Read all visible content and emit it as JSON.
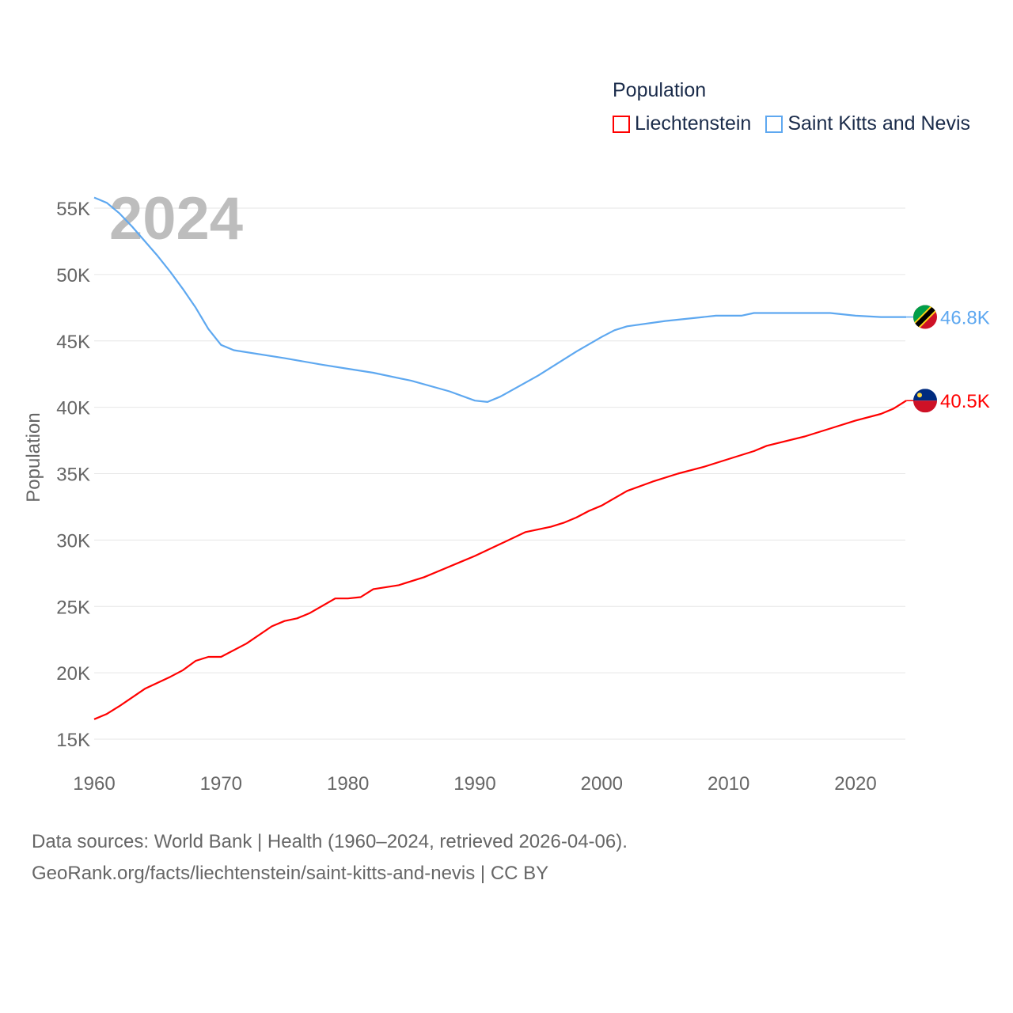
{
  "chart_data": {
    "type": "line",
    "title": "",
    "watermark_year": "2024",
    "ylabel": "Population",
    "xlabel": "",
    "xlim": [
      1960,
      2024
    ],
    "ylim": [
      15000,
      56000
    ],
    "xticks": [
      "1960",
      "1970",
      "1980",
      "1990",
      "2000",
      "2010",
      "2020"
    ],
    "yticks": [
      "15K",
      "20K",
      "25K",
      "30K",
      "35K",
      "40K",
      "45K",
      "50K",
      "55K"
    ],
    "grid": true,
    "legend": {
      "title": "Population",
      "position": "top-right"
    },
    "series": [
      {
        "name": "Liechtenstein",
        "color": "#ff0000",
        "end_label": "40.5K",
        "x": [
          1960,
          1961,
          1962,
          1964,
          1966,
          1967,
          1968,
          1969,
          1970,
          1972,
          1974,
          1975,
          1976,
          1977,
          1979,
          1980,
          1981,
          1982,
          1984,
          1986,
          1987,
          1989,
          1990,
          1992,
          1994,
          1996,
          1997,
          1998,
          1999,
          2000,
          2002,
          2004,
          2006,
          2008,
          2010,
          2012,
          2013,
          2016,
          2018,
          2020,
          2022,
          2023,
          2024
        ],
        "y": [
          16500,
          16900,
          17500,
          18800,
          19700,
          20200,
          20900,
          21200,
          21200,
          22200,
          23500,
          23900,
          24100,
          24500,
          25600,
          25600,
          25700,
          26300,
          26600,
          27200,
          27600,
          28400,
          28800,
          29700,
          30600,
          31000,
          31300,
          31700,
          32200,
          32600,
          33700,
          34400,
          35000,
          35500,
          36100,
          36700,
          37100,
          37800,
          38400,
          39000,
          39500,
          39900,
          40500
        ]
      },
      {
        "name": "Saint Kitts and Nevis",
        "color": "#5ea8f0",
        "end_label": "46.8K",
        "x": [
          1960,
          1961,
          1962,
          1963,
          1964,
          1965,
          1966,
          1967,
          1968,
          1969,
          1970,
          1971,
          1975,
          1978,
          1980,
          1982,
          1985,
          1988,
          1990,
          1991,
          1992,
          1995,
          1998,
          2000,
          2001,
          2002,
          2005,
          2008,
          2009,
          2010,
          2011,
          2012,
          2015,
          2018,
          2020,
          2022,
          2024
        ],
        "y": [
          55800,
          55400,
          54600,
          53600,
          52500,
          51400,
          50200,
          48900,
          47500,
          45900,
          44700,
          44300,
          43700,
          43200,
          42900,
          42600,
          42000,
          41200,
          40500,
          40400,
          40800,
          42400,
          44200,
          45300,
          45800,
          46100,
          46500,
          46800,
          46900,
          46900,
          46900,
          47100,
          47100,
          47100,
          46900,
          46800,
          46800
        ]
      }
    ]
  },
  "footer": {
    "line1": "Data sources: World Bank | Health (1960–2024, retrieved 2026-04-06).",
    "line2": "GeoRank.org/facts/liechtenstein/saint-kitts-and-nevis | CC BY"
  }
}
